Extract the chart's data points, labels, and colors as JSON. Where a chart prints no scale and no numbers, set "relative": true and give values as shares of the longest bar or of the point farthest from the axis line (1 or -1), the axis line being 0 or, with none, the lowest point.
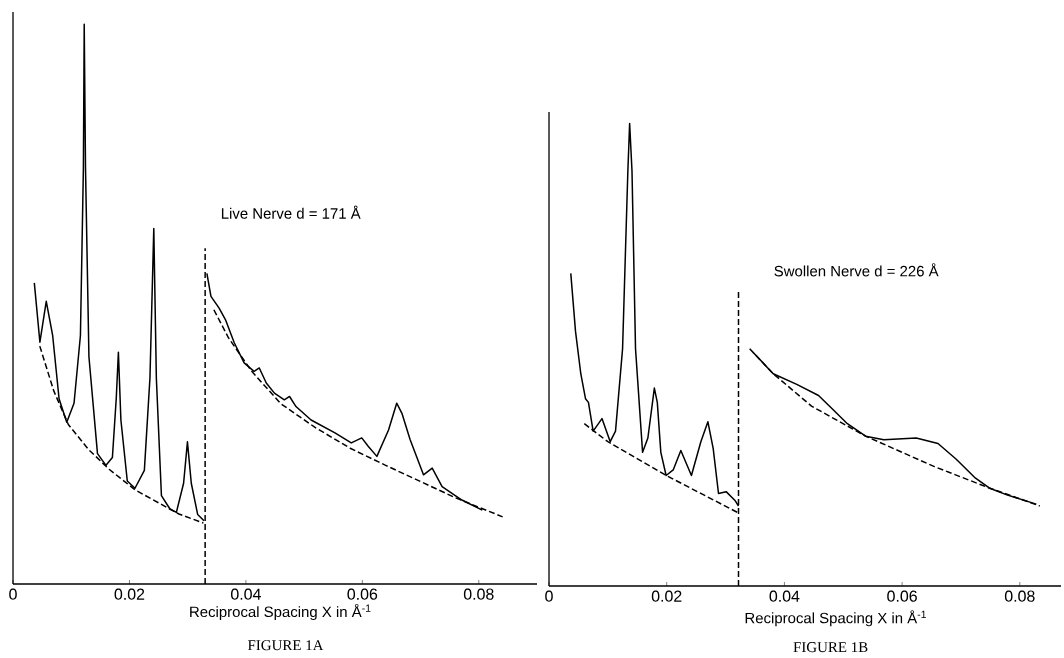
{
  "chart_data": [
    {
      "type": "line",
      "relative": true,
      "xlabel": "Reciprocal Spacing  X in Å$^{-1}$",
      "xlim": [
        0,
        0.09
      ],
      "xticks": [
        0,
        0.02,
        0.04,
        0.06,
        0.08
      ],
      "annotations": [
        "Live Nerve   d = 171 Å",
        "FIGURE 1A"
      ],
      "series": [
        {
          "color": "#000000",
          "line_style": "solid",
          "x": [
            0.00366,
            0.00462,
            0.00571,
            0.00681,
            0.00791,
            0.00923,
            0.01048,
            0.01158,
            0.01209,
            0.01223,
            0.01245,
            0.01304,
            0.01451,
            0.01597,
            0.01707,
            0.01773,
            0.0181,
            0.01853,
            0.01963,
            0.02095,
            0.02256,
            0.02352,
            0.02418,
            0.02462,
            0.02549,
            0.02696,
            0.02806,
            0.0293,
            0.02996,
            0.03062,
            0.03172,
            0.0328,
            0.0329,
            0.0333,
            0.034,
            0.0354,
            0.0365,
            0.038,
            0.0397,
            0.0414,
            0.0423,
            0.0435,
            0.0449,
            0.0466,
            0.0475,
            0.0486,
            0.0512,
            0.0553,
            0.0581,
            0.0599,
            0.061,
            0.0625,
            0.0645,
            0.0659,
            0.0668,
            0.0682,
            0.0705,
            0.072,
            0.0737,
            0.0771,
            0.0806
          ],
          "values": [
            0.538,
            0.432,
            0.505,
            0.444,
            0.331,
            0.289,
            0.323,
            0.444,
            0.744,
            1.0,
            0.744,
            0.406,
            0.233,
            0.212,
            0.226,
            0.331,
            0.414,
            0.293,
            0.184,
            0.171,
            0.203,
            0.368,
            0.635,
            0.368,
            0.158,
            0.134,
            0.128,
            0.18,
            0.254,
            0.18,
            0.124,
            0.113,
            null,
            0.555,
            0.514,
            0.493,
            0.472,
            0.431,
            0.395,
            0.38,
            0.386,
            0.359,
            0.341,
            0.329,
            0.335,
            0.317,
            0.293,
            0.27,
            0.252,
            0.261,
            0.246,
            0.228,
            0.275,
            0.323,
            0.305,
            0.258,
            0.195,
            0.207,
            0.174,
            0.15,
            0.132
          ]
        },
        {
          "color": "#000000",
          "line_style": "dashed",
          "x": [
            0.0046,
            0.007,
            0.0095,
            0.013,
            0.0165,
            0.021,
            0.025,
            0.0285,
            0.0327,
            0.0329,
            0.0345,
            0.037,
            0.041,
            0.046,
            0.052,
            0.058,
            0.064,
            0.07,
            0.076,
            0.0841
          ],
          "values": [
            0.425,
            0.345,
            0.285,
            0.24,
            0.205,
            0.168,
            0.145,
            0.125,
            0.109,
            null,
            0.49,
            0.44,
            0.38,
            0.322,
            0.279,
            0.242,
            0.212,
            0.183,
            0.154,
            0.12
          ]
        },
        {
          "color": "#000000",
          "line_style": "dashed",
          "x": [
            0.033,
            0.033
          ],
          "values": [
            0,
            0.6
          ]
        }
      ]
    },
    {
      "type": "line",
      "relative": true,
      "xlabel": "Reciprocal Spacing  X in Å$^{-1}$",
      "xlim": [
        0,
        0.087
      ],
      "xticks": [
        0,
        0.02,
        0.04,
        0.06,
        0.08
      ],
      "annotations": [
        "Swollen Nerve   d = 226 Å",
        "FIGURE 1B"
      ],
      "series": [
        {
          "color": "#000000",
          "line_style": "solid",
          "x": [
            0.0037,
            0.0045,
            0.0054,
            0.0062,
            0.0067,
            0.0075,
            0.009,
            0.0104,
            0.0113,
            0.0125,
            0.0134,
            0.0137,
            0.0141,
            0.0147,
            0.0159,
            0.0168,
            0.0179,
            0.0184,
            0.019,
            0.0199,
            0.0211,
            0.0224,
            0.0242,
            0.0258,
            0.027,
            0.0279,
            0.0288,
            0.0301,
            0.0316,
            0.0322,
            0.033,
            0.0347,
            0.0381,
            0.0421,
            0.0458,
            0.0482,
            0.0507,
            0.0538,
            0.0569,
            0.0624,
            0.0661,
            0.0692,
            0.0723,
            0.0748,
            0.0778,
            0.0828
          ],
          "values": [
            0.676,
            0.551,
            0.459,
            0.405,
            0.397,
            0.335,
            0.362,
            0.312,
            0.335,
            0.513,
            0.898,
            1.0,
            0.898,
            0.513,
            0.289,
            0.32,
            0.428,
            0.397,
            0.289,
            0.239,
            0.251,
            0.293,
            0.239,
            0.312,
            0.355,
            0.297,
            0.2,
            0.204,
            0.185,
            0.173,
            null,
            0.505,
            0.459,
            0.436,
            0.412,
            0.382,
            0.351,
            0.324,
            0.316,
            0.32,
            0.308,
            0.274,
            0.235,
            0.212,
            0.197,
            0.177
          ]
        },
        {
          "color": "#000000",
          "line_style": "dashed",
          "x": [
            0.006,
            0.01,
            0.0199,
            0.0322,
            0.033,
            0.0341,
            0.0381,
            0.0446,
            0.0538,
            0.0655,
            0.0748,
            0.0834
          ],
          "values": [
            0.351,
            0.312,
            0.239,
            0.158,
            null,
            0.513,
            0.459,
            0.389,
            0.324,
            0.258,
            0.212,
            0.173
          ]
        },
        {
          "color": "#000000",
          "line_style": "dashed",
          "x": [
            0.0322,
            0.0322
          ],
          "values": [
            0,
            0.64
          ]
        }
      ]
    }
  ]
}
